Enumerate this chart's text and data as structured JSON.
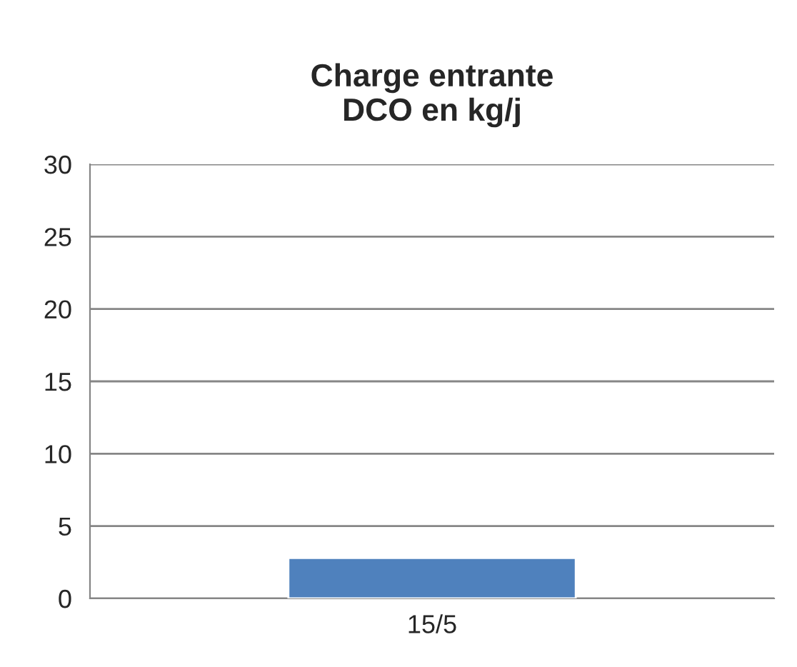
{
  "chart_data": {
    "type": "bar",
    "title": "Charge entrante\nDCO en kg/j",
    "categories": [
      "15/5"
    ],
    "series": [
      {
        "color": "#4f81bd",
        "values": [
          2.8
        ]
      }
    ],
    "ylim": [
      0,
      30
    ],
    "yticks": [
      0,
      5,
      10,
      15,
      20,
      25,
      30
    ],
    "grid": "y",
    "legend": false
  }
}
